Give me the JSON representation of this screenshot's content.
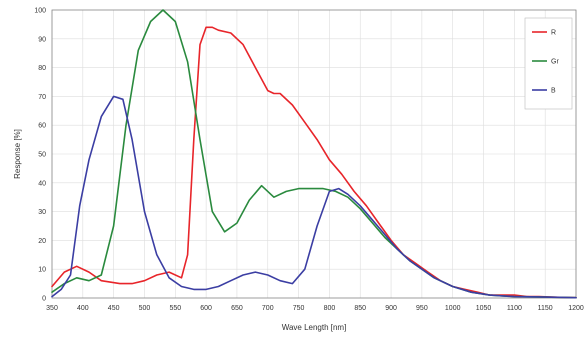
{
  "chart_data": {
    "type": "line",
    "title": "",
    "xlabel": "Wave Length [nm]",
    "ylabel": "Response [%]",
    "xlim": [
      350,
      1200
    ],
    "ylim": [
      0,
      100
    ],
    "xticks": [
      350,
      400,
      450,
      500,
      550,
      600,
      650,
      700,
      750,
      800,
      850,
      900,
      950,
      1000,
      1050,
      1100,
      1150,
      1200
    ],
    "yticks": [
      0,
      10,
      20,
      30,
      40,
      50,
      60,
      70,
      80,
      90,
      100
    ],
    "grid": true,
    "legend_position": "top-right",
    "series": [
      {
        "name": "R",
        "color": "#e8252a",
        "x": [
          350,
          370,
          390,
          410,
          430,
          460,
          480,
          500,
          520,
          540,
          560,
          570,
          580,
          590,
          600,
          610,
          620,
          640,
          660,
          680,
          700,
          710,
          720,
          740,
          760,
          780,
          800,
          820,
          840,
          860,
          880,
          900,
          920,
          940,
          960,
          980,
          1000,
          1020,
          1040,
          1060,
          1080,
          1100,
          1120,
          1140,
          1160,
          1180,
          1200
        ],
        "y": [
          4,
          9,
          11,
          9,
          6,
          5,
          5,
          6,
          8,
          9,
          7,
          15,
          55,
          88,
          94,
          94,
          93,
          92,
          88,
          80,
          72,
          71,
          71,
          67,
          61,
          55,
          48,
          43,
          37,
          32,
          26,
          20,
          15,
          12,
          9,
          6,
          4,
          3,
          2,
          1,
          1,
          1,
          0.5,
          0.5,
          0.3,
          0.2,
          0.1
        ]
      },
      {
        "name": "Gr",
        "color": "#2a8a3e",
        "x": [
          350,
          370,
          390,
          410,
          430,
          450,
          470,
          490,
          510,
          530,
          550,
          570,
          590,
          610,
          630,
          650,
          670,
          690,
          710,
          730,
          750,
          770,
          790,
          810,
          830,
          850,
          870,
          890,
          910,
          930,
          950,
          970,
          1000,
          1030,
          1060,
          1100,
          1150,
          1200
        ],
        "y": [
          2,
          5,
          7,
          6,
          8,
          25,
          60,
          86,
          96,
          100,
          96,
          82,
          55,
          30,
          23,
          26,
          34,
          39,
          35,
          37,
          38,
          38,
          38,
          37,
          35,
          31,
          26,
          21,
          17,
          13,
          10,
          7,
          4,
          2,
          1,
          0.5,
          0.3,
          0.1
        ]
      },
      {
        "name": "B",
        "color": "#3b3ea3",
        "x": [
          350,
          365,
          380,
          395,
          410,
          430,
          450,
          465,
          480,
          500,
          520,
          540,
          560,
          580,
          600,
          620,
          640,
          660,
          680,
          700,
          720,
          740,
          760,
          780,
          800,
          815,
          830,
          850,
          870,
          890,
          910,
          930,
          950,
          970,
          1000,
          1030,
          1060,
          1100,
          1150,
          1200
        ],
        "y": [
          0.5,
          3,
          8,
          32,
          48,
          63,
          70,
          69,
          55,
          30,
          15,
          7,
          4,
          3,
          3,
          4,
          6,
          8,
          9,
          8,
          6,
          5,
          10,
          25,
          37,
          38,
          36,
          32,
          27,
          22,
          17,
          13,
          10,
          7,
          4,
          2,
          1,
          0.5,
          0.3,
          0.1
        ]
      }
    ]
  }
}
